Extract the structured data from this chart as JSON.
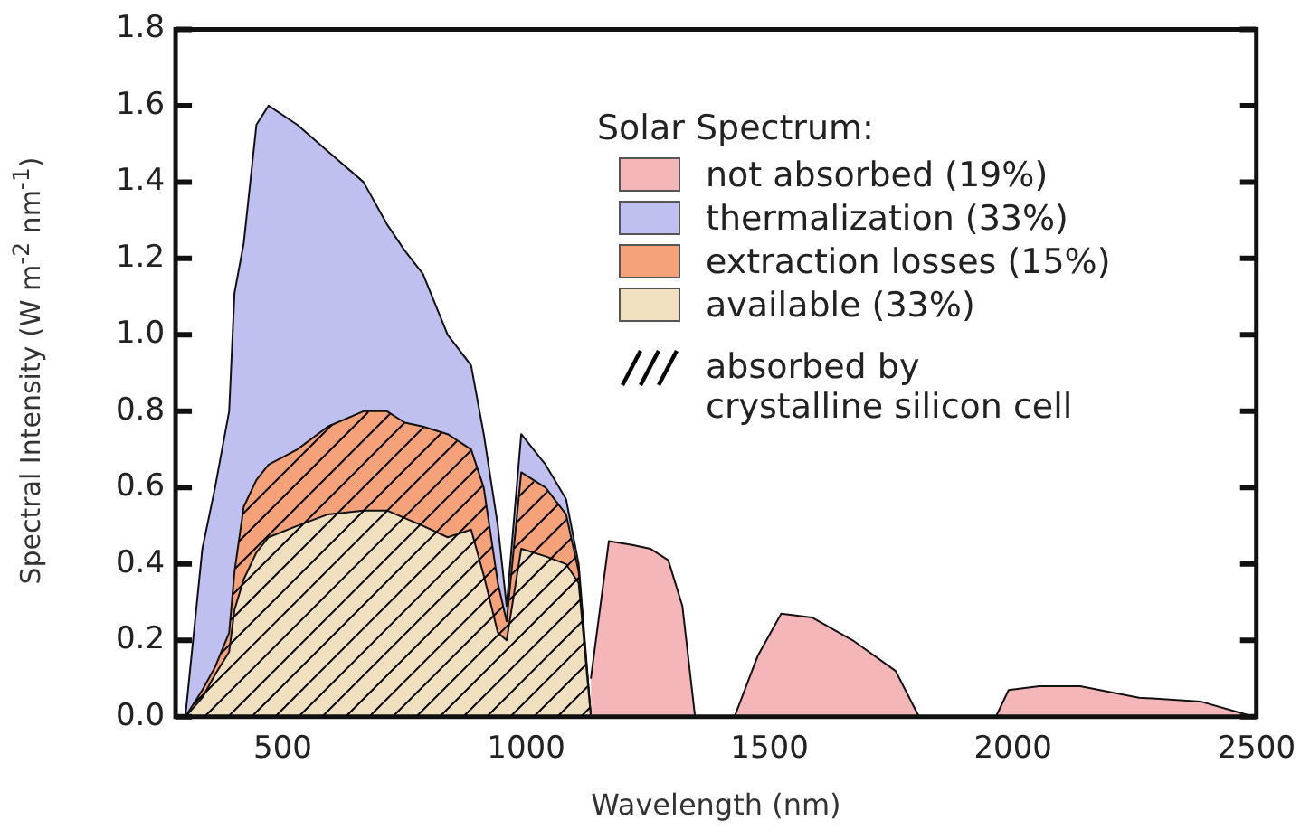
{
  "chart_data": {
    "type": "area",
    "stacked": true,
    "xlabel": "Wavelength (nm)",
    "ylabel": "Spectral Intensity (W m$^{-2}$ nm$^{-1}$)",
    "legend_title": "Solar Spectrum:",
    "x": [
      300,
      335,
      361,
      390,
      401,
      420,
      446,
      471,
      530,
      593,
      666,
      714,
      751,
      788,
      839,
      887,
      913,
      942,
      960,
      990,
      1040,
      1082,
      1108,
      1133,
      1170,
      1218,
      1255,
      1292,
      1321,
      1347,
      1428,
      1476,
      1524,
      1587,
      1671,
      1759,
      1807,
      1965,
      1991,
      2054,
      2138,
      2259,
      2385,
      2495
    ],
    "series": [
      {
        "name": "available (33%)",
        "color": "#f0e0c0",
        "values": [
          0,
          0.05,
          0.11,
          0.17,
          0.28,
          0.36,
          0.43,
          0.47,
          0.5,
          0.53,
          0.54,
          0.54,
          0.52,
          0.5,
          0.47,
          0.49,
          0.37,
          0.22,
          0.2,
          0.44,
          0.42,
          0.4,
          0.35,
          0,
          0,
          0,
          0,
          0,
          0,
          0,
          0,
          0,
          0,
          0,
          0,
          0,
          0,
          0,
          0,
          0,
          0,
          0,
          0,
          0
        ]
      },
      {
        "name": "extraction losses (15%)",
        "color": "#f5a27a",
        "values": [
          0,
          0.02,
          0.02,
          0.05,
          0.1,
          0.19,
          0.19,
          0.19,
          0.2,
          0.23,
          0.26,
          0.26,
          0.25,
          0.26,
          0.27,
          0.21,
          0.23,
          0.13,
          0.05,
          0.2,
          0.18,
          0.13,
          0.03,
          0,
          0,
          0,
          0,
          0,
          0,
          0,
          0,
          0,
          0,
          0,
          0,
          0,
          0,
          0,
          0,
          0,
          0,
          0,
          0,
          0
        ]
      },
      {
        "name": "thermalization (33%)",
        "color": "#c0c0f0",
        "values": [
          0,
          0.37,
          0.47,
          0.58,
          0.73,
          0.69,
          0.93,
          0.94,
          0.85,
          0.72,
          0.6,
          0.49,
          0.45,
          0.4,
          0.26,
          0.22,
          0.14,
          0.15,
          0.04,
          0.1,
          0.06,
          0.04,
          0.02,
          0,
          0,
          0,
          0,
          0,
          0,
          0,
          0,
          0,
          0,
          0,
          0,
          0,
          0,
          0,
          0,
          0,
          0,
          0,
          0,
          0
        ]
      },
      {
        "name": "not absorbed (19%)",
        "color": "#f4b6b8",
        "values": [
          null,
          null,
          null,
          null,
          null,
          null,
          null,
          null,
          null,
          null,
          null,
          null,
          null,
          null,
          null,
          null,
          null,
          null,
          null,
          null,
          null,
          null,
          null,
          0.1,
          0.46,
          0.45,
          0.44,
          0.41,
          0.29,
          0,
          0,
          0.16,
          0.27,
          0.26,
          0.2,
          0.12,
          0,
          0,
          0.07,
          0.08,
          0.08,
          0.05,
          0.04,
          0
        ]
      }
    ],
    "annotations": [
      "absorbed by crystalline silicon cell"
    ],
    "xlim": [
      280,
      2500
    ],
    "xticks": [
      500,
      1000,
      1500,
      2000,
      2500
    ],
    "ylim": [
      0,
      1.8
    ],
    "yticks": [
      {
        "value": 0,
        "label": "0.0"
      },
      0.2,
      0.4,
      0.6,
      0.8,
      {
        "value": 1,
        "label": "1.0"
      },
      1.2,
      1.4,
      1.6,
      1.8
    ],
    "grid": false,
    "legend": "top right"
  }
}
